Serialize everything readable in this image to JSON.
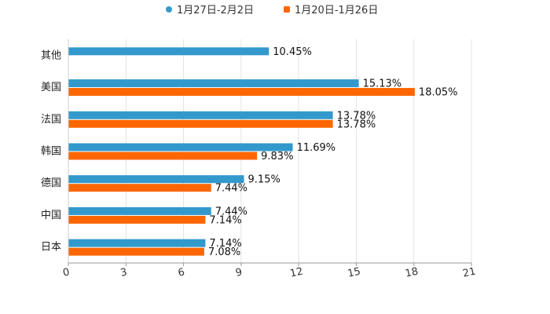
{
  "chart_data": {
    "type": "bar",
    "orientation": "horizontal",
    "title": "",
    "xlabel": "",
    "ylabel": "",
    "xlim": [
      0,
      21
    ],
    "x_ticks": [
      "0",
      "3",
      "6",
      "9",
      "12",
      "15",
      "18",
      "21"
    ],
    "x_tick_values": [
      0,
      3,
      6,
      9,
      12,
      15,
      18,
      21
    ],
    "grid": true,
    "legend_position": "top-center",
    "categories": [
      "其他",
      "美国",
      "法国",
      "韩国",
      "德国",
      "中国",
      "日本"
    ],
    "series": [
      {
        "name": "1月27日-2月2日",
        "color": "#3399cc",
        "marker": "circle",
        "values": [
          10.45,
          15.13,
          13.78,
          11.69,
          9.15,
          7.44,
          7.14
        ],
        "labels": [
          "10.45%",
          "15.13%",
          "13.78%",
          "11.69%",
          "9.15%",
          "7.44%",
          "7.14%"
        ]
      },
      {
        "name": "1月20日-1月26日",
        "color": "#ff6600",
        "marker": "square",
        "values": [
          null,
          18.05,
          13.78,
          9.83,
          7.44,
          7.14,
          7.08
        ],
        "labels": [
          null,
          "18.05%",
          "13.78%",
          "9.83%",
          "7.44%",
          "7.14%",
          "7.08%"
        ]
      }
    ]
  }
}
